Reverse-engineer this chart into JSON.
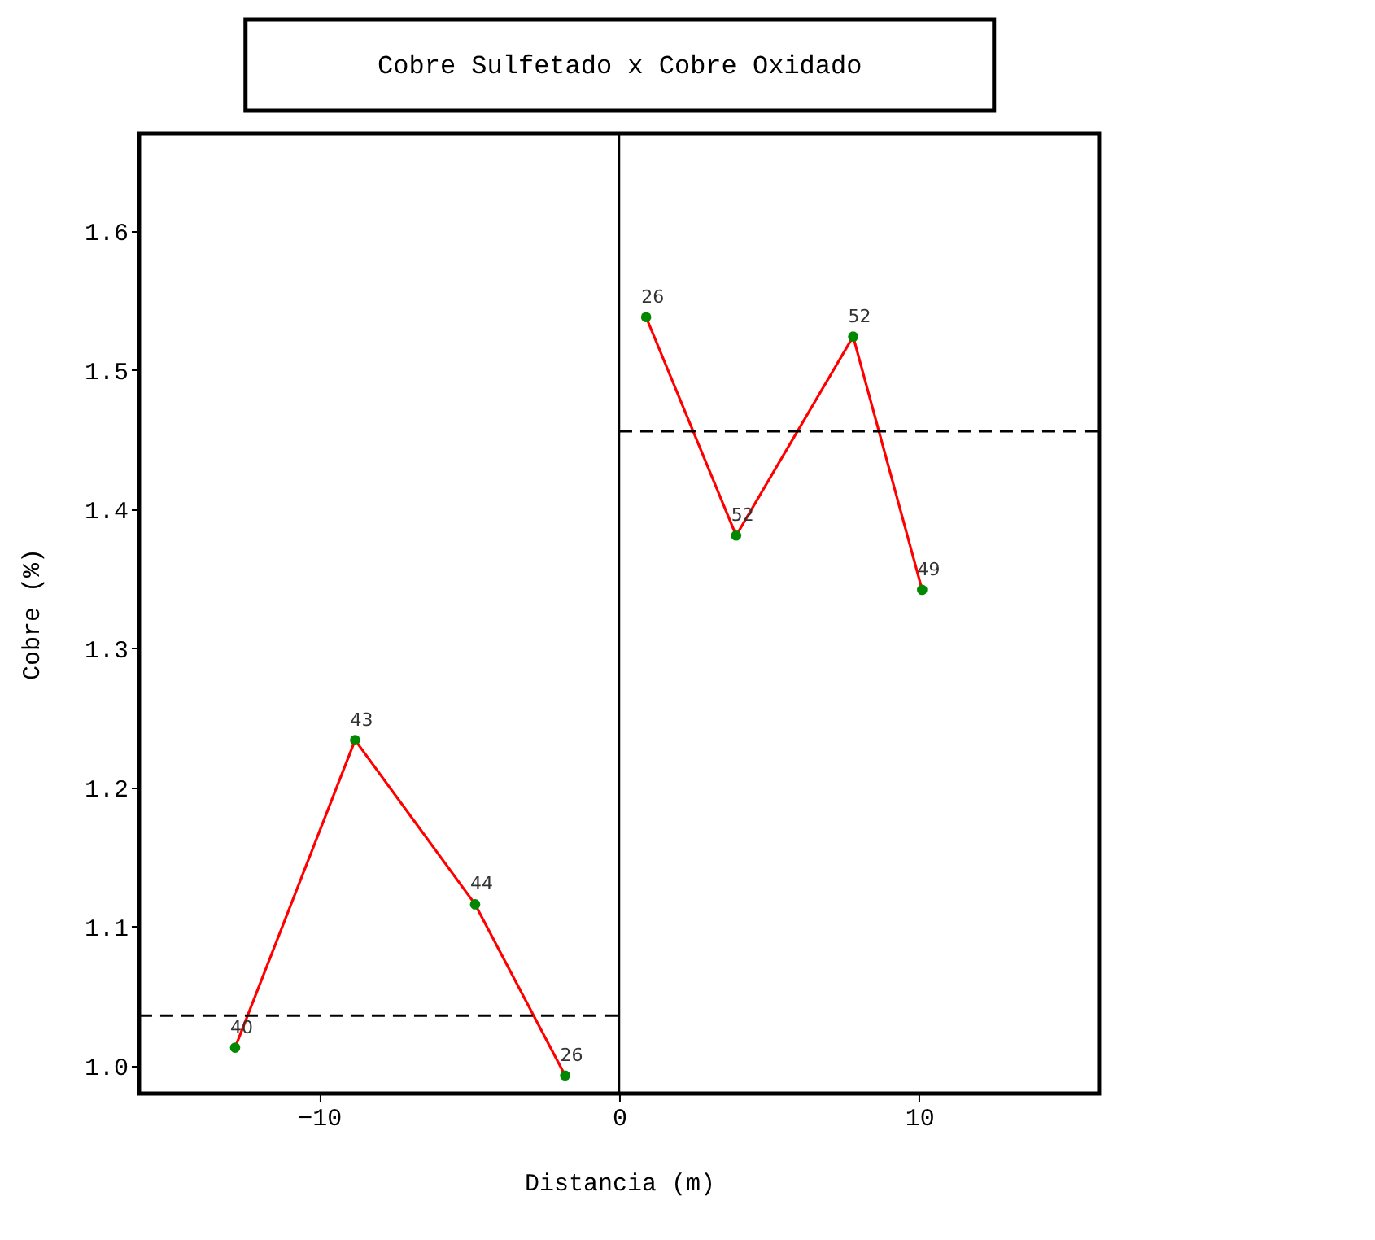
{
  "chart_data": {
    "type": "line",
    "title": "Cobre Sulfetado x Cobre Oxidado",
    "xlabel": "Distancia (m)",
    "ylabel": "Cobre (%)",
    "xlim": [
      -16,
      16
    ],
    "xticks": [
      -10,
      0,
      10
    ],
    "ylim": [
      0.98,
      1.67
    ],
    "yticks": [
      {
        "value": 1,
        "label": "1.0"
      },
      1.1,
      1.2,
      1.3,
      1.4,
      1.5,
      1.6
    ],
    "grid": false,
    "marker": "circle",
    "line_style": "solid",
    "series": [
      {
        "color": "#ff0000",
        "x": [
          -12.8,
          -8.8,
          -4.8,
          -1.8
        ],
        "values": [
          1.013,
          1.234,
          1.116,
          0.993
        ]
      },
      {
        "color": "#ff0000",
        "x": [
          0.9,
          3.9,
          7.8,
          10.1
        ],
        "values": [
          1.538,
          1.381,
          1.524,
          1.342
        ]
      },
      {
        "color": "#000000",
        "x": [
          -16,
          0
        ],
        "values": [
          1.036,
          1.036
        ],
        "marker": "none",
        "line_style": "dashed"
      },
      {
        "color": "#000000",
        "x": [
          0,
          16
        ],
        "values": [
          1.456,
          1.456
        ],
        "marker": "none",
        "line_style": "dashed"
      }
    ],
    "ref_lines": [
      {
        "axis": "x",
        "value": 0,
        "color": "#000000",
        "line_style": "solid"
      }
    ],
    "annotations": [
      {
        "text": "40",
        "x": -12.8,
        "y": 1.013
      },
      {
        "text": "43",
        "x": -8.8,
        "y": 1.234
      },
      {
        "text": "44",
        "x": -4.8,
        "y": 1.116
      },
      {
        "text": "26",
        "x": -1.8,
        "y": 0.993
      },
      {
        "text": "26",
        "x": 0.9,
        "y": 1.538
      },
      {
        "text": "52",
        "x": 3.9,
        "y": 1.381
      },
      {
        "text": "52",
        "x": 7.8,
        "y": 1.524
      },
      {
        "text": "49",
        "x": 10.1,
        "y": 1.342
      }
    ]
  }
}
